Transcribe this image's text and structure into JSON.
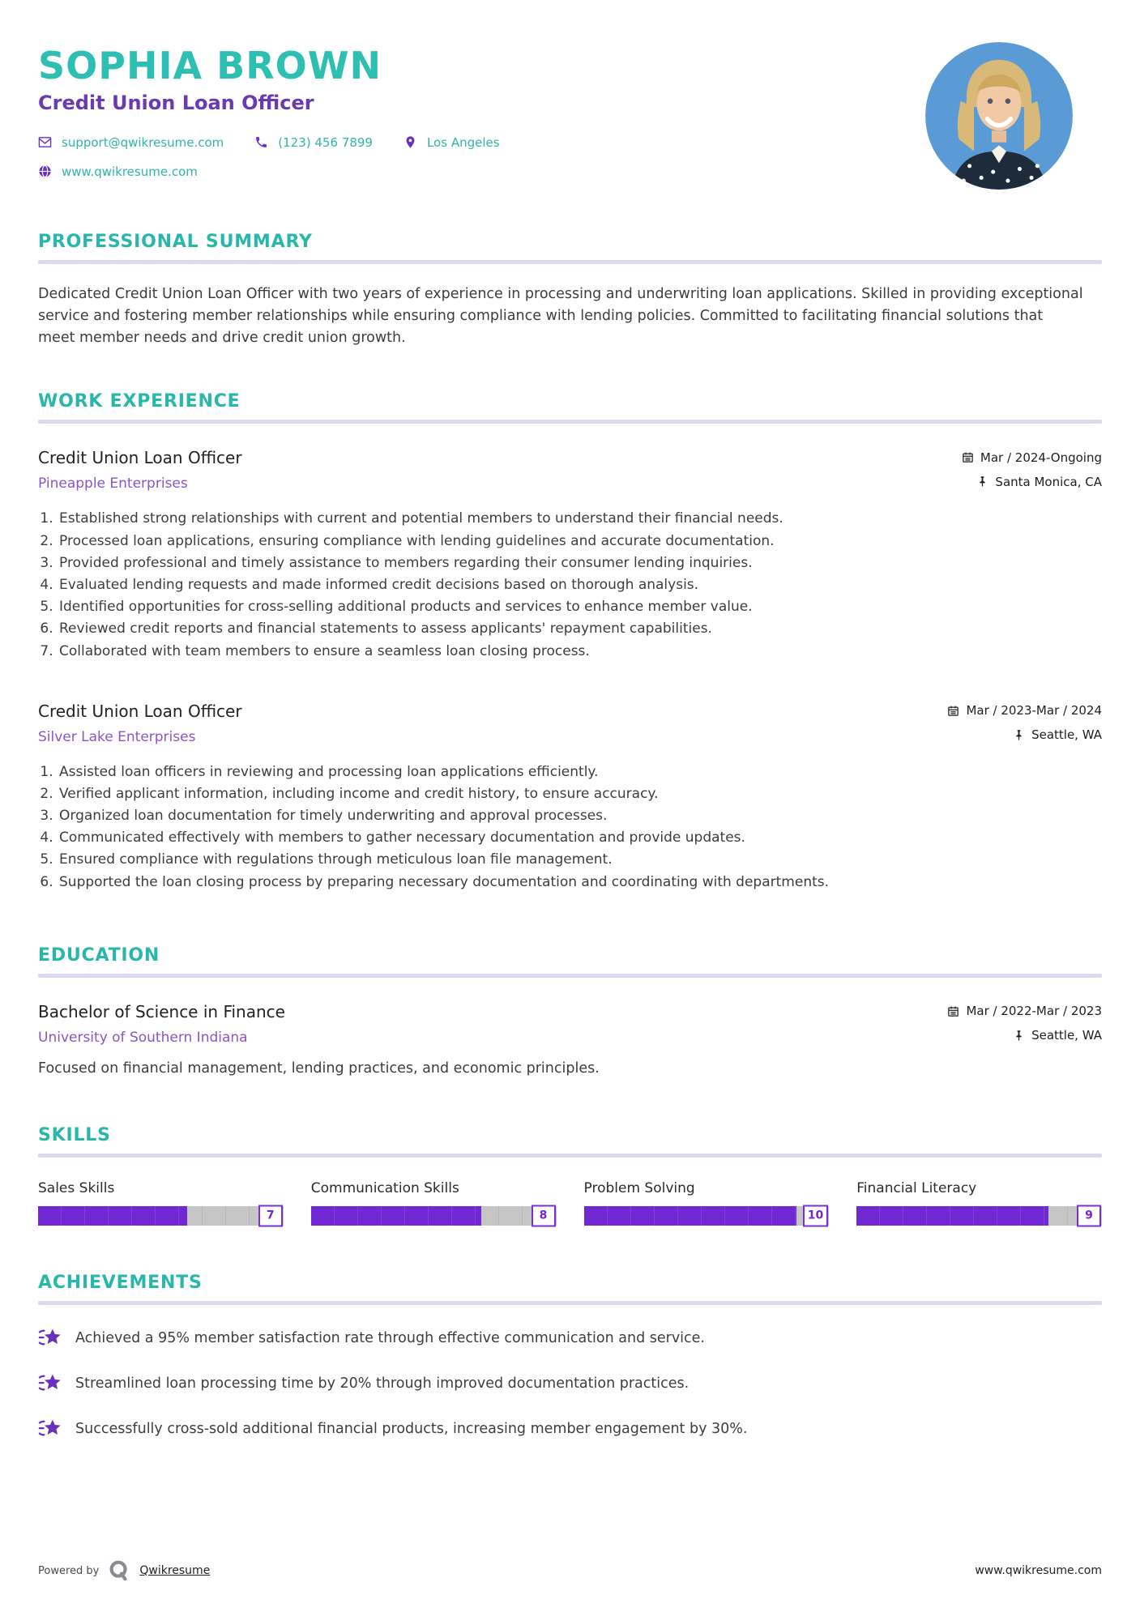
{
  "header": {
    "name": "SOPHIA BROWN",
    "title": "Credit Union Loan Officer",
    "contact": {
      "email": "support@qwikresume.com",
      "phone": "(123) 456 7899",
      "location": "Los Angeles",
      "website": "www.qwikresume.com"
    }
  },
  "sections": {
    "summary": {
      "heading": "PROFESSIONAL SUMMARY",
      "text": "Dedicated Credit Union Loan Officer with two years of experience in processing and underwriting loan applications. Skilled in providing exceptional service and fostering member relationships while ensuring compliance with lending policies. Committed to facilitating financial solutions that meet member needs and drive credit union growth."
    },
    "experience": {
      "heading": "WORK EXPERIENCE",
      "jobs": [
        {
          "title": "Credit Union Loan Officer",
          "company": "Pineapple Enterprises",
          "dates": "Mar / 2024-Ongoing",
          "location": "Santa Monica, CA",
          "bullets": [
            "Established strong relationships with current and potential members to understand their financial needs.",
            "Processed loan applications, ensuring compliance with lending guidelines and accurate documentation.",
            "Provided professional and timely assistance to members regarding their consumer lending inquiries.",
            "Evaluated lending requests and made informed credit decisions based on thorough analysis.",
            "Identified opportunities for cross-selling additional products and services to enhance member value.",
            "Reviewed credit reports and financial statements to assess applicants' repayment capabilities.",
            "Collaborated with team members to ensure a seamless loan closing process."
          ]
        },
        {
          "title": "Credit Union Loan Officer",
          "company": "Silver Lake Enterprises",
          "dates": "Mar / 2023-Mar / 2024",
          "location": "Seattle, WA",
          "bullets": [
            "Assisted loan officers in reviewing and processing loan applications efficiently.",
            "Verified applicant information, including income and credit history, to ensure accuracy.",
            "Organized loan documentation for timely underwriting and approval processes.",
            "Communicated effectively with members to gather necessary documentation and provide updates.",
            "Ensured compliance with regulations through meticulous loan file management.",
            "Supported the loan closing process by preparing necessary documentation and coordinating with departments."
          ]
        }
      ]
    },
    "education": {
      "heading": "EDUCATION",
      "degree": "Bachelor of Science in Finance",
      "school": "University of Southern Indiana",
      "dates": "Mar / 2022-Mar / 2023",
      "location": "Seattle, WA",
      "description": "Focused on financial management, lending practices, and economic principles."
    },
    "skills": {
      "heading": "SKILLS",
      "items": [
        {
          "name": "Sales Skills",
          "level": 7,
          "max": 10
        },
        {
          "name": "Communication Skills",
          "level": 8,
          "max": 10
        },
        {
          "name": "Problem Solving",
          "level": 10,
          "max": 10
        },
        {
          "name": "Financial Literacy",
          "level": 9,
          "max": 10
        }
      ]
    },
    "achievements": {
      "heading": "ACHIEVEMENTS",
      "items": [
        "Achieved a 95% member satisfaction rate through effective communication and service.",
        "Streamlined loan processing time by 20% through improved documentation practices.",
        "Successfully cross-sold additional financial products, increasing member engagement by 30%."
      ]
    }
  },
  "footer": {
    "powered_by": "Powered by",
    "brand": "Qwikresume",
    "website": "www.qwikresume.com"
  },
  "icons": {
    "email": "envelope",
    "phone": "handset",
    "location": "map-pin",
    "website": "globe",
    "date": "calendar",
    "place": "pushpin",
    "achievement": "shooting-star",
    "brand": "q-mark"
  },
  "colors": {
    "accent_teal": "#2ebfb3",
    "accent_purple": "#6a3ab2",
    "company_purple": "#8a55c8",
    "icon_purple": "#6a30c0",
    "bar_purple": "#7127d3",
    "bar_gray": "#c6c6c6",
    "divider": "#dcd8ee",
    "body_text": "#3d3d3d"
  }
}
